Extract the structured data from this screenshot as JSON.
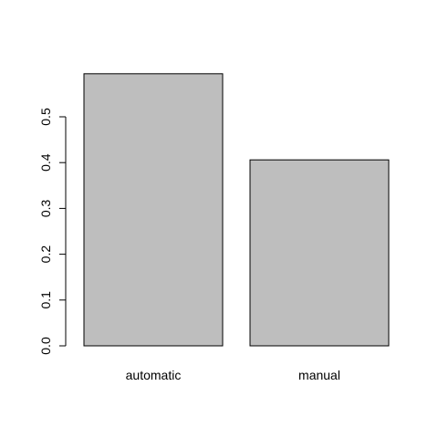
{
  "chart_data": {
    "type": "bar",
    "categories": [
      "automatic",
      "manual"
    ],
    "values": [
      0.594,
      0.406
    ],
    "yticks": [
      "0.0",
      "0.1",
      "0.2",
      "0.3",
      "0.4",
      "0.5"
    ],
    "ylim": [
      0,
      0.6
    ],
    "grid": false,
    "bar_fill": "#bebebe",
    "bar_stroke": "#000000"
  }
}
